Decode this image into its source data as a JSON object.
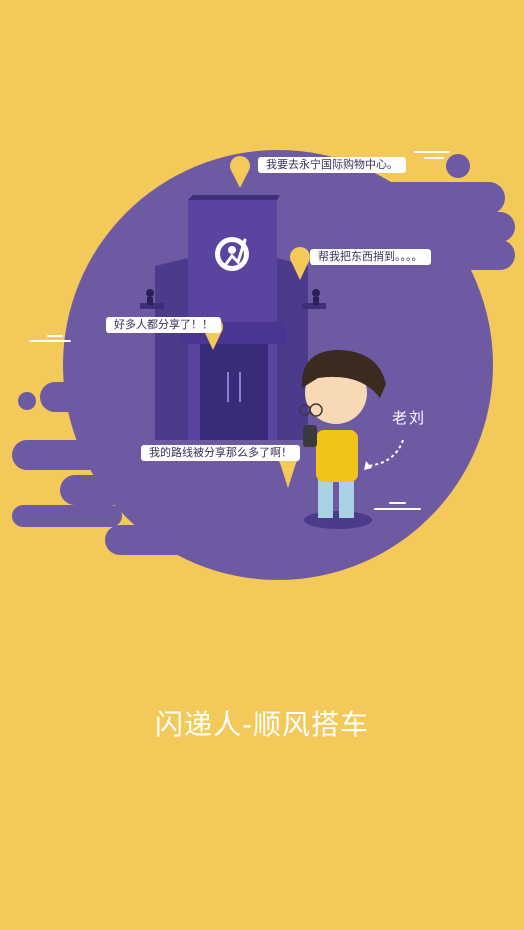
{
  "illustration": {
    "bubbles": [
      "我要去永宁国际购物中心。",
      "帮我把东西捎到。。。。",
      "好多人都分享了！！",
      "我的路线被分享那么多了啊！"
    ],
    "character_name": "老刘",
    "building_logo_icon": "running-person-logo-icon"
  },
  "app_title": "闪递人-顺风搭车",
  "colors": {
    "background": "#f3c95a",
    "circle": "#6e5aa3",
    "building": "#5b44a0",
    "bubble": "#ffffff",
    "pin": "#f3c95a"
  }
}
